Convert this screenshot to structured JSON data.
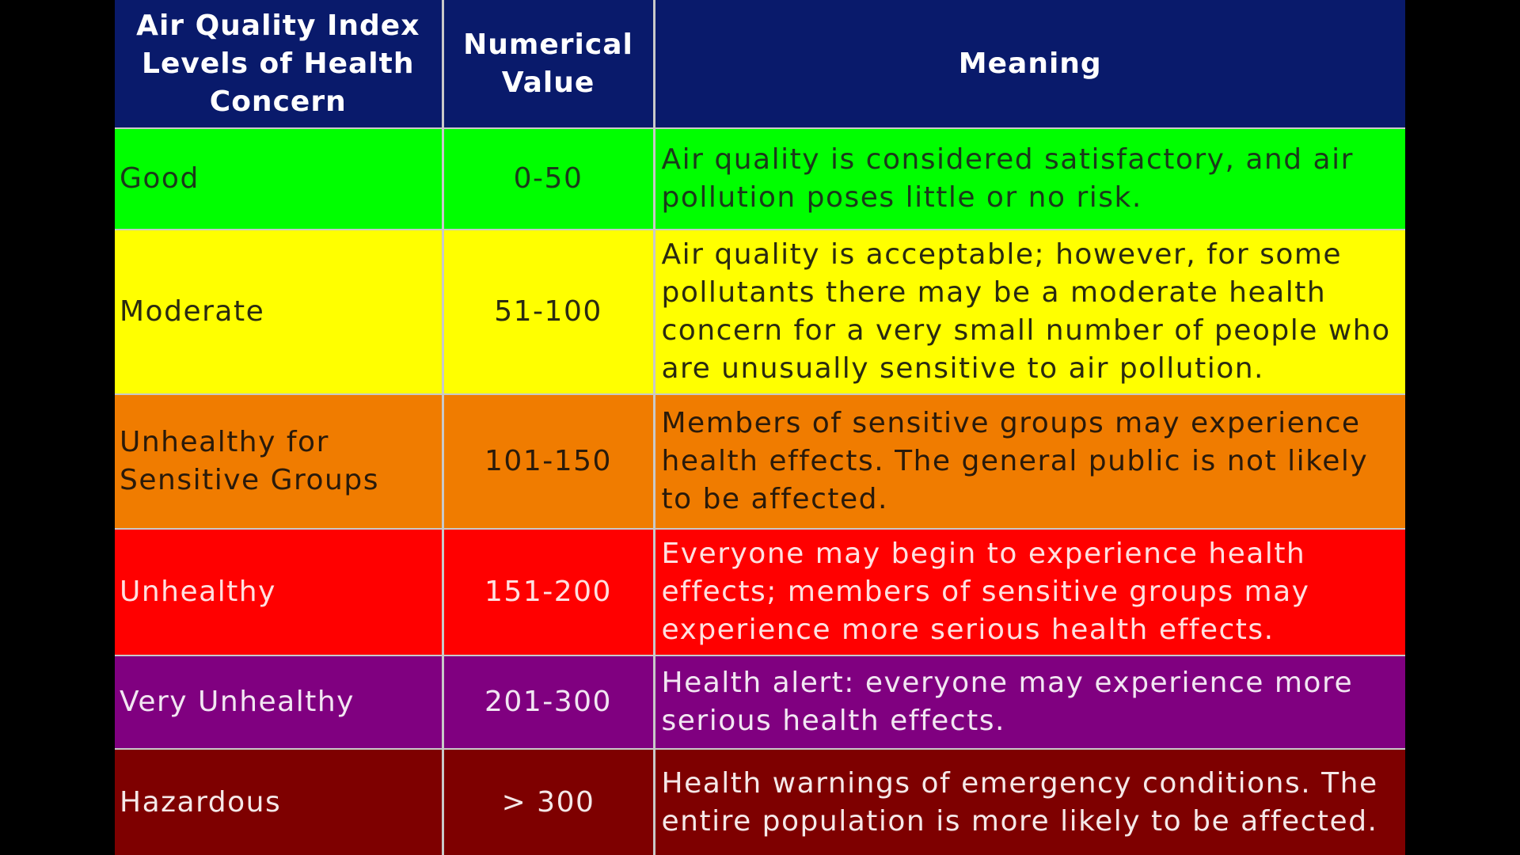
{
  "table": {
    "headers": {
      "level": "Air Quality Index Levels of Health Concern",
      "value": "Numerical Value",
      "meaning": "Meaning"
    },
    "header_color": "#091a6b",
    "rows": [
      {
        "level": "Good",
        "value": "0-50",
        "meaning": "Air quality is considered satisfactory, and air pollution poses little or no risk.",
        "bg": "#00ff00",
        "fg": "#1a3a1a"
      },
      {
        "level": "Moderate",
        "value": "51-100",
        "meaning": "Air quality is acceptable; however, for some pollutants there may be a moderate health concern for a very small number of people who are unusually sensitive to air pollution.",
        "bg": "#ffff00",
        "fg": "#2a2a10"
      },
      {
        "level": "Unhealthy for Sensitive Groups",
        "value": "101-150",
        "meaning": "Members of sensitive groups may experience health effects.  The general public is not likely to be affected.",
        "bg": "#f07c00",
        "fg": "#2a1a0a"
      },
      {
        "level": "Unhealthy",
        "value": "151-200",
        "meaning": "Everyone may begin to experience health effects; members of sensitive groups may experience more serious health effects.",
        "bg": "#ff0000",
        "fg": "#ffe0e0"
      },
      {
        "level": "Very Unhealthy",
        "value": "201-300",
        "meaning": "Health alert: everyone may experience more serious health effects.",
        "bg": "#800080",
        "fg": "#f2e6f2"
      },
      {
        "level": "Hazardous",
        "value": "> 300",
        "meaning": "Health warnings of emergency conditions.  The entire population is more likely to be affected.",
        "bg": "#7e0000",
        "fg": "#f5e8e8"
      }
    ]
  }
}
